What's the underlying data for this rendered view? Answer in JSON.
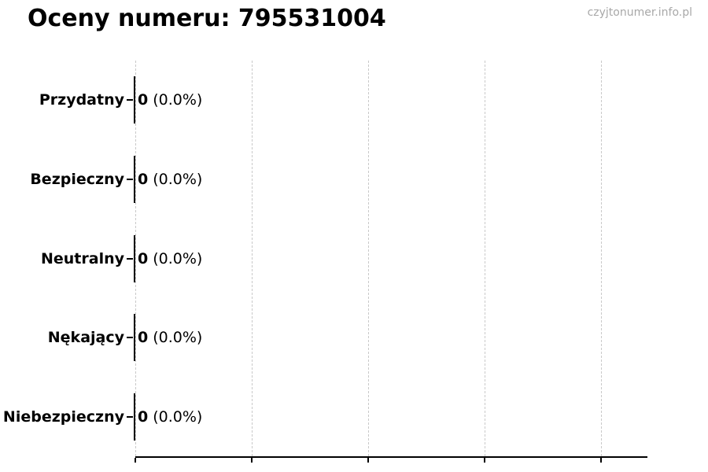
{
  "watermark": "czyjtonumer.info.pl",
  "chart_data": {
    "type": "bar",
    "orientation": "horizontal",
    "title": "Oceny numeru: 795531004",
    "categories": [
      "Przydatny",
      "Bezpieczny",
      "Neutralny",
      "Nękający",
      "Niebezpieczny"
    ],
    "values": [
      0,
      0,
      0,
      0,
      0
    ],
    "annotations": [
      {
        "value": "0",
        "percent": "(0.0%)"
      },
      {
        "value": "0",
        "percent": "(0.0%)"
      },
      {
        "value": "0",
        "percent": "(0.0%)"
      },
      {
        "value": "0",
        "percent": "(0.0%)"
      },
      {
        "value": "0",
        "percent": "(0.0%)"
      }
    ],
    "xlabel": "",
    "ylabel": "",
    "xlim": [
      0,
      1.1
    ],
    "grid": {
      "vertical_dashed": true,
      "positions": [
        0,
        0.25,
        0.5,
        0.75,
        1.0
      ]
    },
    "legend": "none",
    "colors": {
      "bar_edge": "#000000",
      "grid": "#c9c9c9",
      "axis": "#000000",
      "text": "#000000",
      "watermark": "#a8a8a8"
    }
  }
}
